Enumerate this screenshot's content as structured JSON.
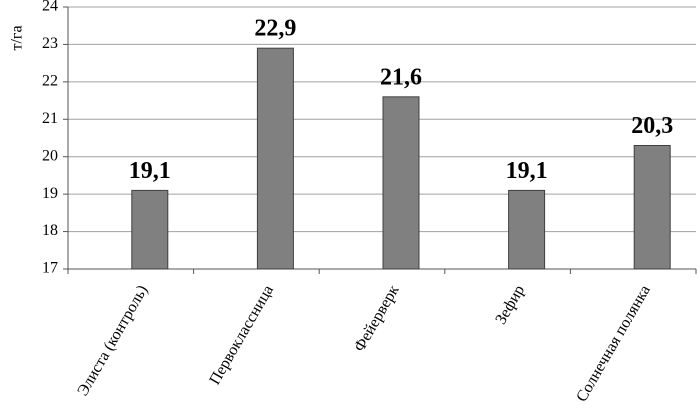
{
  "chart_data": {
    "type": "bar",
    "y_label": "т/га",
    "categories": [
      "Элиста (контроль)",
      "Первоклассница",
      "Фейерверк",
      "Зефир",
      "Солнечная полянка"
    ],
    "values": [
      19.1,
      22.9,
      21.6,
      19.1,
      20.3
    ],
    "value_labels": [
      "19,1",
      "22,9",
      "21,6",
      "19,1",
      "20,3"
    ],
    "color": "#808080",
    "ylim": [
      17,
      24
    ],
    "yticks": [
      17,
      18,
      19,
      20,
      21,
      22,
      23,
      24
    ],
    "grid": true
  }
}
